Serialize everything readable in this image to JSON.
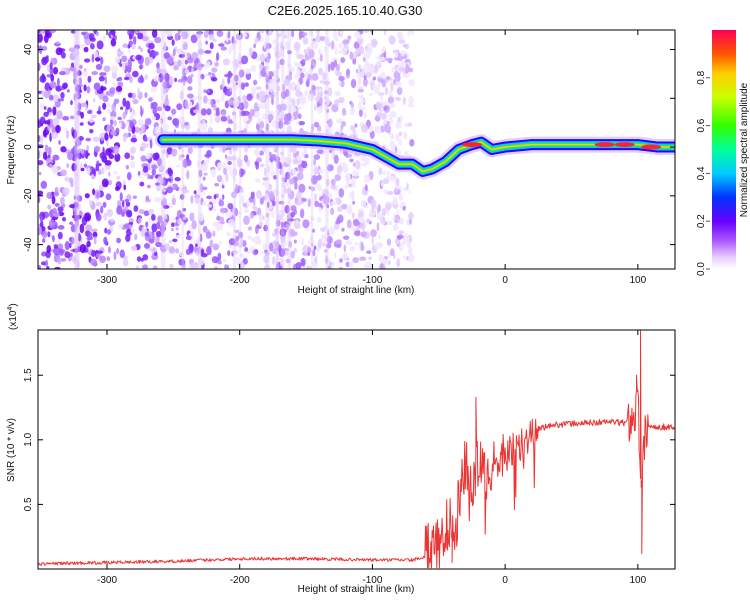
{
  "title": "C2E6.2025.165.10.40.G30",
  "chart_data": [
    {
      "type": "heatmap",
      "xlabel": "Height of straight line (km)",
      "ylabel": "Frequency (Hz)",
      "xlim": [
        -352,
        128
      ],
      "ylim": [
        -50,
        48
      ],
      "x_ticks": [
        -300,
        -200,
        -100,
        0,
        100
      ],
      "x_tick_labels": [
        "-300",
        "-200",
        "-100",
        "0",
        "100"
      ],
      "y_ticks": [
        -40,
        -20,
        0,
        20,
        40
      ],
      "y_tick_labels": [
        "-40",
        "-20",
        "0",
        "20",
        "40"
      ],
      "colorbar": {
        "label": "Normalized spectral amplitude",
        "range": [
          0,
          1
        ],
        "ticks": [
          0.0,
          0.2,
          0.4,
          0.6,
          0.8
        ],
        "tick_labels": [
          "0.0",
          "0.2",
          "0.4",
          "0.6",
          "0.8"
        ]
      },
      "ridge": {
        "x": [
          -258,
          -240,
          -220,
          -200,
          -180,
          -160,
          -140,
          -120,
          -100,
          -90,
          -80,
          -70,
          -62,
          -55,
          -45,
          -35,
          -25,
          -18,
          -10,
          0,
          20,
          40,
          60,
          80,
          100,
          115,
          128
        ],
        "y": [
          3,
          3,
          3,
          3,
          3,
          3,
          2.5,
          1.5,
          -1,
          -4,
          -7,
          -7,
          -10,
          -9,
          -6,
          -1,
          1,
          2,
          -1,
          0,
          1,
          1,
          1,
          1,
          1,
          0,
          0
        ]
      }
    },
    {
      "type": "line",
      "xlabel": "Height of straight line (km)",
      "ylabel": "SNR (10 * v/v)",
      "y_multiplier": "(x10",
      "y_multiplier_exp": "4",
      "multiplier_close": ")",
      "xlim": [
        -352,
        128
      ],
      "ylim": [
        0,
        1.85
      ],
      "x_ticks": [
        -300,
        -200,
        -100,
        0,
        100
      ],
      "x_tick_labels": [
        "-300",
        "-200",
        "-100",
        "0",
        "100"
      ],
      "y_ticks": [
        0.5,
        1.0,
        1.5
      ],
      "y_tick_labels": [
        "0.5",
        "1.0",
        "1.5"
      ],
      "color": "#ee3333",
      "series": [
        {
          "x": [
            -352,
            -300,
            -250,
            -200,
            -150,
            -100,
            -70,
            -55,
            -50,
            -45,
            -40,
            -35,
            -30,
            -25,
            -20,
            -15,
            -10,
            -5,
            0,
            5,
            10,
            15,
            20,
            25,
            30,
            40,
            60,
            80,
            90,
            95,
            100,
            103,
            106,
            110,
            115,
            120,
            128
          ],
          "values": [
            0.04,
            0.05,
            0.06,
            0.08,
            0.08,
            0.07,
            0.07,
            0.1,
            0.2,
            0.3,
            0.42,
            0.55,
            0.8,
            0.65,
            0.85,
            0.7,
            0.8,
            0.85,
            0.9,
            0.9,
            0.95,
            1.0,
            1.05,
            1.08,
            1.1,
            1.12,
            1.13,
            1.14,
            1.13,
            1.15,
            1.3,
            0.6,
            1.12,
            1.1,
            1.1,
            1.1,
            1.1
          ],
          "spikes": [
            {
              "x": -22,
              "value": 1.33
            },
            {
              "x": 102,
              "value": 1.86
            },
            {
              "x": 103,
              "value": 0.12
            },
            {
              "x": -40,
              "value": 0.05
            },
            {
              "x": 99,
              "value": 1.5
            }
          ]
        }
      ]
    }
  ]
}
